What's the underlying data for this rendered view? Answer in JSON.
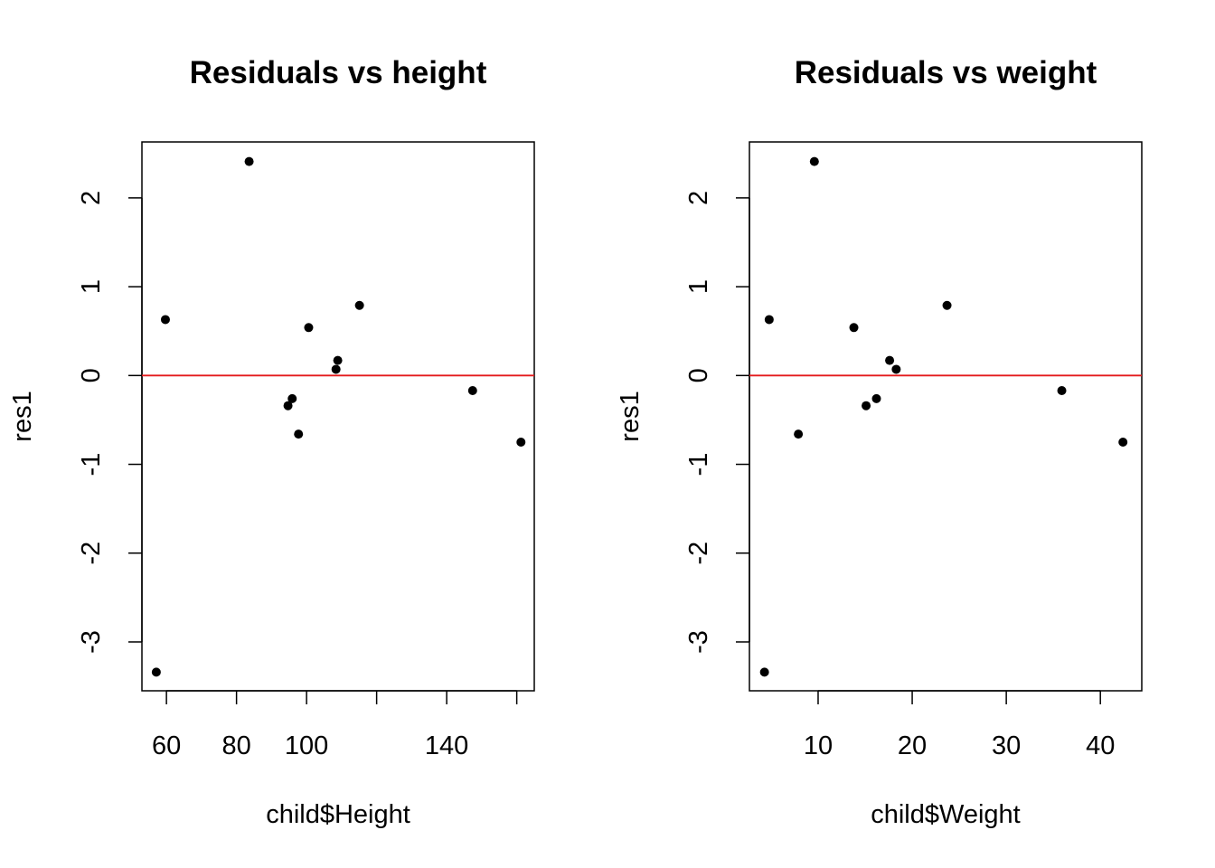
{
  "chart_data": [
    {
      "type": "scatter",
      "title": "Residuals vs height",
      "xlabel": "child$Height",
      "ylabel": "res1",
      "xlim": [
        53,
        165
      ],
      "ylim": [
        -3.55,
        2.63
      ],
      "xticks": [
        60,
        80,
        100,
        120,
        140,
        160
      ],
      "xtick_labels": [
        "60",
        "80",
        "100",
        "",
        "140",
        ""
      ],
      "yticks": [
        -3,
        -2,
        -1,
        0,
        1,
        2
      ],
      "ytick_labels": [
        "-3",
        "-2",
        "-1",
        "0",
        "1",
        "2"
      ],
      "reference_line": {
        "y": 0,
        "color": "#e41a1c"
      },
      "point_color": "#000000",
      "grid": false,
      "points": [
        {
          "x": 57.1,
          "y": -3.34
        },
        {
          "x": 59.7,
          "y": 0.63
        },
        {
          "x": 83.6,
          "y": 2.41
        },
        {
          "x": 94.7,
          "y": -0.34
        },
        {
          "x": 95.9,
          "y": -0.26
        },
        {
          "x": 97.7,
          "y": -0.66
        },
        {
          "x": 100.6,
          "y": 0.54
        },
        {
          "x": 108.4,
          "y": 0.07
        },
        {
          "x": 108.9,
          "y": 0.17
        },
        {
          "x": 115.1,
          "y": 0.79
        },
        {
          "x": 147.4,
          "y": -0.17
        },
        {
          "x": 161.2,
          "y": -0.75
        }
      ]
    },
    {
      "type": "scatter",
      "title": "Residuals vs weight",
      "xlabel": "child$Weight",
      "ylabel": "res1",
      "xlim": [
        2.7,
        44.4
      ],
      "ylim": [
        -3.55,
        2.63
      ],
      "xticks": [
        10,
        20,
        30,
        40
      ],
      "xtick_labels": [
        "10",
        "20",
        "30",
        "40"
      ],
      "yticks": [
        -3,
        -2,
        -1,
        0,
        1,
        2
      ],
      "ytick_labels": [
        "-3",
        "-2",
        "-1",
        "0",
        "1",
        "2"
      ],
      "reference_line": {
        "y": 0,
        "color": "#e41a1c"
      },
      "point_color": "#000000",
      "grid": false,
      "points": [
        {
          "x": 4.3,
          "y": -3.34
        },
        {
          "x": 4.8,
          "y": 0.63
        },
        {
          "x": 9.6,
          "y": 2.41
        },
        {
          "x": 7.9,
          "y": -0.66
        },
        {
          "x": 13.8,
          "y": 0.54
        },
        {
          "x": 15.1,
          "y": -0.34
        },
        {
          "x": 16.2,
          "y": -0.26
        },
        {
          "x": 17.6,
          "y": 0.17
        },
        {
          "x": 18.3,
          "y": 0.07
        },
        {
          "x": 23.7,
          "y": 0.79
        },
        {
          "x": 35.9,
          "y": -0.17
        },
        {
          "x": 42.4,
          "y": -0.75
        }
      ]
    }
  ]
}
